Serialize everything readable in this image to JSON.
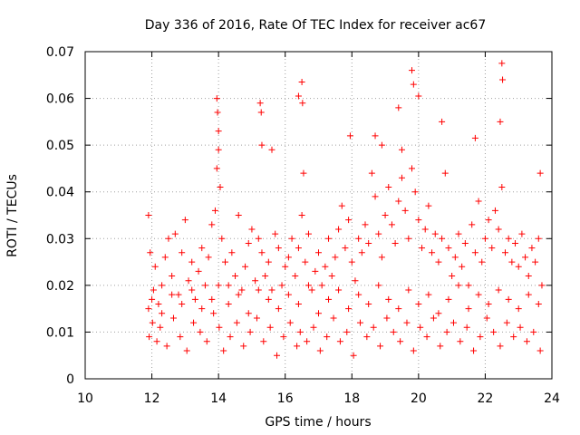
{
  "chart_data": {
    "type": "scatter",
    "title": "Day 336 of 2016, Rate Of TEC Index for receiver ac67",
    "xlabel": "GPS time / hours",
    "ylabel": "ROTI / TECUs",
    "xlim": [
      10,
      24
    ],
    "ylim": [
      0,
      0.07
    ],
    "xticks": [
      10,
      12,
      14,
      16,
      18,
      20,
      22,
      24
    ],
    "yticks": [
      0,
      0.01,
      0.02,
      0.03,
      0.04,
      0.05,
      0.06,
      0.07
    ],
    "xtick_labels": [
      "10",
      "12",
      "14",
      "16",
      "18",
      "20",
      "22",
      "24"
    ],
    "ytick_labels": [
      "0",
      "0.01",
      "0.02",
      "0.03",
      "0.04",
      "0.05",
      "0.06",
      "0.07"
    ],
    "grid": true,
    "marker": "+",
    "color": "#ff0000",
    "series": [
      {
        "name": "ROTI",
        "x": [
          11.9,
          11.95,
          12.05,
          12.1,
          12.2,
          12.3,
          12.4,
          12.5,
          12.6,
          12.7,
          12.8,
          12.9,
          13.0,
          13.1,
          13.2,
          13.3,
          13.4,
          13.5,
          13.6,
          13.7,
          13.8,
          13.9,
          13.95,
          14.0,
          14.05,
          14.1,
          14.2,
          14.3,
          14.4,
          14.5,
          14.6,
          14.7,
          14.8,
          14.9,
          15.0,
          15.1,
          15.2,
          15.3,
          15.4,
          15.5,
          15.6,
          15.7,
          15.8,
          15.9,
          16.0,
          16.1,
          16.2,
          16.3,
          16.4,
          16.5,
          16.55,
          16.6,
          16.7,
          16.8,
          16.9,
          17.0,
          17.1,
          17.2,
          17.3,
          17.4,
          17.5,
          17.6,
          17.7,
          17.8,
          17.9,
          18.0,
          18.1,
          18.2,
          18.3,
          18.4,
          18.5,
          18.6,
          18.7,
          18.8,
          18.9,
          19.0,
          19.1,
          19.2,
          19.3,
          19.4,
          19.5,
          19.6,
          19.7,
          19.8,
          19.9,
          20.0,
          20.1,
          20.2,
          20.3,
          20.4,
          20.5,
          20.6,
          20.7,
          20.8,
          20.9,
          21.0,
          21.1,
          21.2,
          21.3,
          21.4,
          21.5,
          21.6,
          21.7,
          21.8,
          21.9,
          22.0,
          22.1,
          22.2,
          22.3,
          22.4,
          22.5,
          22.6,
          22.7,
          22.8,
          22.9,
          23.0,
          23.1,
          23.2,
          23.3,
          23.4,
          23.5,
          23.6,
          23.7,
          11.92,
          12.02,
          12.15,
          12.25,
          12.45,
          12.65,
          12.85,
          13.05,
          13.25,
          13.45,
          13.65,
          13.85,
          14.02,
          14.15,
          14.35,
          14.55,
          14.75,
          14.95,
          15.15,
          15.35,
          15.55,
          15.75,
          15.95,
          16.15,
          16.35,
          16.45,
          16.65,
          16.85,
          17.05,
          17.25,
          17.45,
          17.65,
          17.85,
          18.05,
          18.25,
          18.45,
          18.65,
          18.85,
          19.05,
          19.25,
          19.45,
          19.65,
          19.85,
          20.05,
          20.25,
          20.45,
          20.65,
          20.85,
          21.05,
          21.25,
          21.45,
          21.65,
          21.85,
          22.05,
          22.25,
          22.45,
          22.65,
          22.85,
          23.05,
          23.25,
          23.45,
          23.65,
          11.9,
          12.0,
          12.3,
          12.6,
          12.9,
          13.2,
          13.5,
          13.8,
          14.0,
          14.3,
          14.6,
          14.9,
          15.2,
          15.5,
          15.8,
          16.1,
          16.4,
          16.7,
          17.0,
          17.3,
          17.6,
          17.9,
          18.2,
          18.5,
          18.8,
          19.1,
          19.4,
          19.7,
          20.0,
          20.3,
          20.6,
          20.9,
          21.2,
          21.5,
          21.8,
          22.1,
          22.4,
          22.7,
          23.0,
          23.3,
          23.6,
          13.95,
          13.97,
          14.0,
          15.25,
          15.28,
          16.5,
          16.52,
          16.4,
          19.8,
          19.85,
          20.0,
          22.5,
          22.52,
          22.45,
          18.7,
          18.9,
          19.4,
          21.7,
          17.95,
          19.5,
          20.7,
          23.65,
          15.3,
          15.6
        ],
        "y": [
          0.035,
          0.027,
          0.019,
          0.024,
          0.016,
          0.02,
          0.026,
          0.03,
          0.022,
          0.031,
          0.018,
          0.027,
          0.034,
          0.021,
          0.025,
          0.017,
          0.023,
          0.028,
          0.02,
          0.026,
          0.033,
          0.036,
          0.045,
          0.049,
          0.041,
          0.03,
          0.025,
          0.02,
          0.027,
          0.022,
          0.035,
          0.019,
          0.024,
          0.029,
          0.032,
          0.021,
          0.03,
          0.027,
          0.022,
          0.025,
          0.019,
          0.031,
          0.028,
          0.02,
          0.024,
          0.026,
          0.03,
          0.022,
          0.028,
          0.035,
          0.044,
          0.025,
          0.031,
          0.019,
          0.023,
          0.027,
          0.02,
          0.024,
          0.03,
          0.022,
          0.026,
          0.032,
          0.037,
          0.028,
          0.034,
          0.025,
          0.021,
          0.03,
          0.027,
          0.033,
          0.029,
          0.044,
          0.039,
          0.031,
          0.026,
          0.035,
          0.041,
          0.033,
          0.029,
          0.038,
          0.043,
          0.036,
          0.03,
          0.045,
          0.04,
          0.034,
          0.028,
          0.032,
          0.037,
          0.027,
          0.031,
          0.025,
          0.03,
          0.044,
          0.028,
          0.022,
          0.026,
          0.031,
          0.024,
          0.029,
          0.02,
          0.033,
          0.027,
          0.038,
          0.025,
          0.03,
          0.034,
          0.028,
          0.036,
          0.032,
          0.041,
          0.027,
          0.03,
          0.025,
          0.029,
          0.024,
          0.031,
          0.026,
          0.022,
          0.028,
          0.025,
          0.03,
          0.02,
          0.009,
          0.012,
          0.008,
          0.011,
          0.007,
          0.013,
          0.009,
          0.006,
          0.012,
          0.01,
          0.008,
          0.014,
          0.011,
          0.006,
          0.009,
          0.012,
          0.007,
          0.01,
          0.013,
          0.008,
          0.011,
          0.005,
          0.009,
          0.012,
          0.007,
          0.01,
          0.008,
          0.011,
          0.006,
          0.009,
          0.013,
          0.008,
          0.01,
          0.005,
          0.012,
          0.009,
          0.011,
          0.007,
          0.013,
          0.01,
          0.008,
          0.012,
          0.006,
          0.011,
          0.009,
          0.013,
          0.007,
          0.01,
          0.012,
          0.008,
          0.011,
          0.006,
          0.009,
          0.013,
          0.01,
          0.007,
          0.012,
          0.009,
          0.011,
          0.008,
          0.01,
          0.006,
          0.015,
          0.017,
          0.014,
          0.018,
          0.016,
          0.019,
          0.015,
          0.017,
          0.02,
          0.016,
          0.018,
          0.014,
          0.019,
          0.017,
          0.015,
          0.018,
          0.016,
          0.02,
          0.014,
          0.017,
          0.019,
          0.015,
          0.018,
          0.016,
          0.02,
          0.017,
          0.015,
          0.019,
          0.016,
          0.018,
          0.014,
          0.017,
          0.02,
          0.015,
          0.018,
          0.016,
          0.019,
          0.017,
          0.015,
          0.018,
          0.016,
          0.06,
          0.057,
          0.053,
          0.059,
          0.057,
          0.0635,
          0.059,
          0.0605,
          0.066,
          0.063,
          0.0605,
          0.0675,
          0.064,
          0.055,
          0.052,
          0.05,
          0.058,
          0.0515,
          0.052,
          0.049,
          0.055,
          0.044,
          0.05,
          0.049
        ]
      }
    ]
  }
}
